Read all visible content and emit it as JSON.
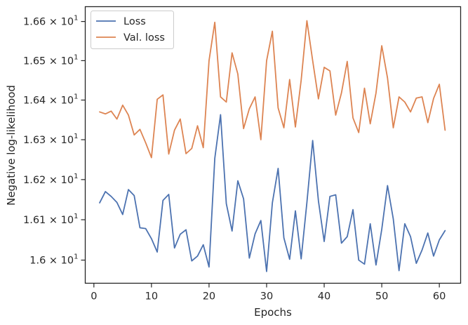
{
  "chart_data": {
    "type": "line",
    "xlabel": "Epochs",
    "ylabel": "Negative log-likelihood",
    "xlim": [
      -1.5,
      63.7
    ],
    "ylim": [
      15.943,
      16.638
    ],
    "yscale": "log",
    "grid": false,
    "legend_position": "top-left",
    "x_ticks": [
      {
        "value": 0,
        "label": "0"
      },
      {
        "value": 10,
        "label": "10"
      },
      {
        "value": 20,
        "label": "20"
      },
      {
        "value": 30,
        "label": "30"
      },
      {
        "value": 40,
        "label": "40"
      },
      {
        "value": 50,
        "label": "50"
      },
      {
        "value": 60,
        "label": "60"
      }
    ],
    "y_ticks": [
      {
        "value": 16.0,
        "mantissa": "1.6",
        "times": "× 10",
        "exp": "1"
      },
      {
        "value": 16.1,
        "mantissa": "1.61",
        "times": "× 10",
        "exp": "1"
      },
      {
        "value": 16.2,
        "mantissa": "1.62",
        "times": "× 10",
        "exp": "1"
      },
      {
        "value": 16.3,
        "mantissa": "1.63",
        "times": "× 10",
        "exp": "1"
      },
      {
        "value": 16.4,
        "mantissa": "1.64",
        "times": "× 10",
        "exp": "1"
      },
      {
        "value": 16.5,
        "mantissa": "1.65",
        "times": "× 10",
        "exp": "1"
      },
      {
        "value": 16.6,
        "mantissa": "1.66",
        "times": "× 10",
        "exp": "1"
      }
    ],
    "x": [
      1,
      2,
      3,
      4,
      5,
      6,
      7,
      8,
      9,
      10,
      11,
      12,
      13,
      14,
      15,
      16,
      17,
      18,
      19,
      20,
      21,
      22,
      23,
      24,
      25,
      26,
      27,
      28,
      29,
      30,
      31,
      32,
      33,
      34,
      35,
      36,
      37,
      38,
      39,
      40,
      41,
      42,
      43,
      44,
      45,
      46,
      47,
      48,
      49,
      50,
      51,
      52,
      53,
      54,
      55,
      56,
      57,
      58,
      59,
      60,
      61
    ],
    "series": [
      {
        "name": "Loss",
        "color": "#4c72b0",
        "values": [
          16.142,
          16.17,
          16.158,
          16.143,
          16.113,
          16.175,
          16.16,
          16.08,
          16.078,
          16.053,
          16.02,
          16.148,
          16.163,
          16.03,
          16.064,
          16.075,
          15.998,
          16.01,
          16.038,
          15.983,
          16.253,
          16.363,
          16.14,
          16.072,
          16.197,
          16.152,
          16.005,
          16.065,
          16.098,
          15.972,
          16.142,
          16.228,
          16.055,
          16.002,
          16.122,
          16.003,
          16.143,
          16.298,
          16.147,
          16.046,
          16.158,
          16.162,
          16.042,
          16.058,
          16.125,
          16.0,
          15.99,
          16.09,
          15.988,
          16.076,
          16.185,
          16.102,
          15.974,
          16.09,
          16.058,
          15.992,
          16.025,
          16.067,
          16.01,
          16.05,
          16.073
        ]
      },
      {
        "name": "Val. loss",
        "color": "#dd8452",
        "values": [
          16.37,
          16.365,
          16.372,
          16.352,
          16.387,
          16.362,
          16.312,
          16.326,
          16.292,
          16.255,
          16.402,
          16.413,
          16.264,
          16.324,
          16.352,
          16.265,
          16.278,
          16.335,
          16.28,
          16.5,
          16.598,
          16.408,
          16.395,
          16.52,
          16.466,
          16.328,
          16.378,
          16.408,
          16.3,
          16.5,
          16.575,
          16.38,
          16.33,
          16.452,
          16.332,
          16.45,
          16.602,
          16.5,
          16.403,
          16.483,
          16.474,
          16.362,
          16.418,
          16.498,
          16.355,
          16.318,
          16.43,
          16.34,
          16.418,
          16.538,
          16.456,
          16.33,
          16.408,
          16.395,
          16.37,
          16.405,
          16.408,
          16.343,
          16.404,
          16.44,
          16.324
        ]
      }
    ]
  }
}
